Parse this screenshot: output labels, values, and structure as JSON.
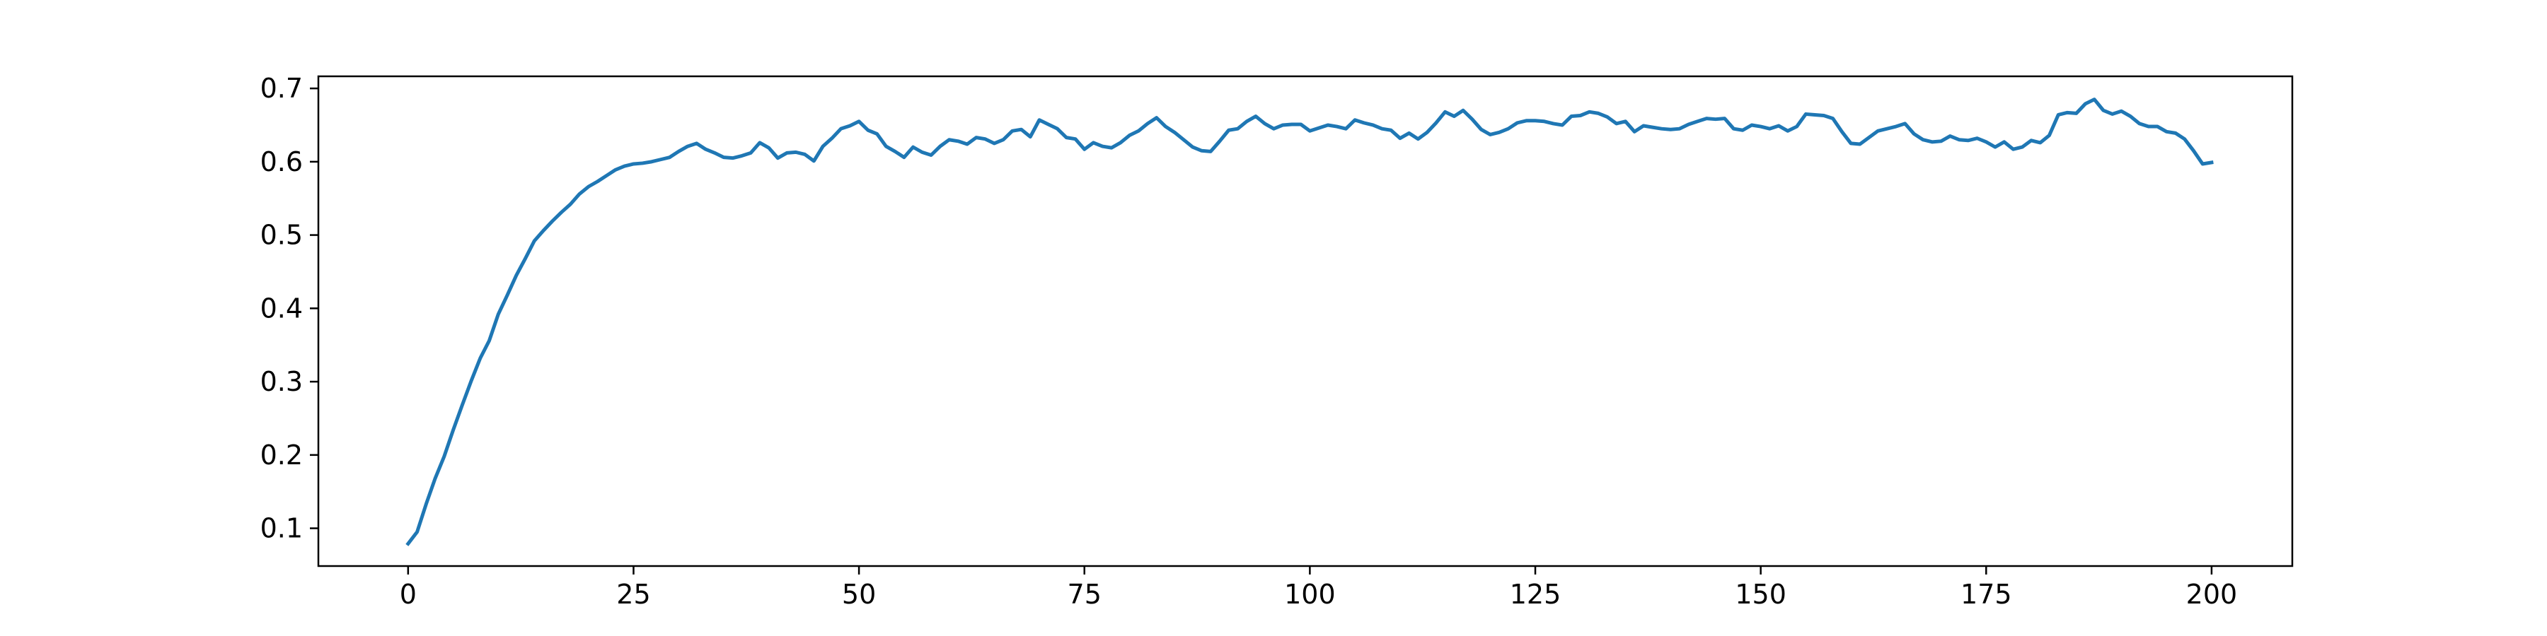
{
  "chart_data": {
    "type": "line",
    "title": "",
    "xlabel": "",
    "ylabel": "",
    "xlim": [
      -9.95,
      208.95
    ],
    "ylim": [
      0.0485,
      0.7165
    ],
    "xticks": [
      0,
      25,
      50,
      75,
      100,
      125,
      150,
      175,
      200
    ],
    "yticks": [
      0.1,
      0.2,
      0.3,
      0.4,
      0.5,
      0.6,
      0.7
    ],
    "xtick_labels": [
      "0",
      "25",
      "50",
      "75",
      "100",
      "125",
      "150",
      "175",
      "200"
    ],
    "ytick_labels": [
      "0.1",
      "0.2",
      "0.3",
      "0.4",
      "0.5",
      "0.6",
      "0.7"
    ],
    "grid": false,
    "legend": false,
    "line_color": "#1f77b4",
    "series": [
      {
        "values": [
          0.079,
          0.095,
          0.133,
          0.168,
          0.198,
          0.234,
          0.268,
          0.301,
          0.332,
          0.356,
          0.392,
          0.418,
          0.445,
          0.468,
          0.492,
          0.506,
          0.519,
          0.531,
          0.542,
          0.556,
          0.566,
          0.573,
          0.581,
          0.589,
          0.594,
          0.597,
          0.598,
          0.6,
          0.603,
          0.606,
          0.614,
          0.621,
          0.625,
          0.617,
          0.612,
          0.606,
          0.605,
          0.608,
          0.612,
          0.626,
          0.619,
          0.605,
          0.612,
          0.613,
          0.61,
          0.601,
          0.621,
          0.632,
          0.645,
          0.649,
          0.655,
          0.643,
          0.638,
          0.621,
          0.614,
          0.606,
          0.62,
          0.613,
          0.609,
          0.621,
          0.63,
          0.628,
          0.624,
          0.633,
          0.631,
          0.625,
          0.63,
          0.642,
          0.644,
          0.634,
          0.657,
          0.651,
          0.645,
          0.633,
          0.631,
          0.617,
          0.626,
          0.621,
          0.619,
          0.626,
          0.636,
          0.642,
          0.652,
          0.66,
          0.648,
          0.64,
          0.63,
          0.62,
          0.615,
          0.614,
          0.628,
          0.643,
          0.645,
          0.655,
          0.662,
          0.652,
          0.645,
          0.65,
          0.651,
          0.651,
          0.642,
          0.646,
          0.65,
          0.648,
          0.645,
          0.657,
          0.653,
          0.65,
          0.645,
          0.643,
          0.632,
          0.639,
          0.631,
          0.64,
          0.653,
          0.668,
          0.662,
          0.67,
          0.658,
          0.644,
          0.637,
          0.64,
          0.645,
          0.653,
          0.656,
          0.656,
          0.655,
          0.652,
          0.65,
          0.662,
          0.663,
          0.668,
          0.666,
          0.661,
          0.652,
          0.655,
          0.641,
          0.649,
          0.647,
          0.645,
          0.644,
          0.645,
          0.651,
          0.655,
          0.659,
          0.658,
          0.659,
          0.645,
          0.643,
          0.65,
          0.648,
          0.645,
          0.649,
          0.642,
          0.648,
          0.665,
          0.664,
          0.663,
          0.659,
          0.641,
          0.625,
          0.624,
          0.633,
          0.642,
          0.645,
          0.648,
          0.652,
          0.638,
          0.63,
          0.627,
          0.628,
          0.635,
          0.63,
          0.629,
          0.632,
          0.627,
          0.62,
          0.627,
          0.617,
          0.62,
          0.629,
          0.626,
          0.636,
          0.664,
          0.667,
          0.666,
          0.679,
          0.685,
          0.67,
          0.665,
          0.669,
          0.662,
          0.652,
          0.648,
          0.648,
          0.641,
          0.639,
          0.631,
          0.615,
          0.597,
          0.599
        ]
      }
    ]
  }
}
